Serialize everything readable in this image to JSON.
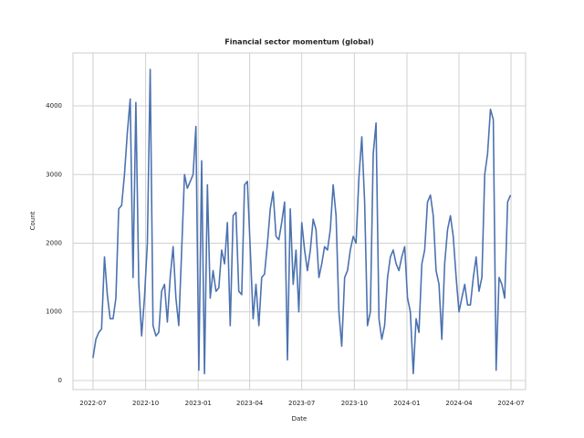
{
  "chart_data": {
    "type": "line",
    "title": "Financial sector momentum (global)",
    "xlabel": "Date",
    "ylabel": "Count",
    "series": [
      {
        "name": "Count",
        "color": "#4c72b0",
        "values": [
          330,
          600,
          700,
          750,
          1800,
          1250,
          900,
          900,
          1200,
          2500,
          2550,
          3000,
          3600,
          4100,
          1500,
          4050,
          1400,
          650,
          1200,
          2000,
          4530,
          800,
          650,
          700,
          1300,
          1400,
          850,
          1500,
          1950,
          1200,
          800,
          1900,
          3000,
          2800,
          2900,
          3000,
          3700,
          150,
          3200,
          100,
          2850,
          1200,
          1600,
          1300,
          1350,
          1900,
          1700,
          2300,
          800,
          2400,
          2450,
          1300,
          1250,
          2850,
          2900,
          1900,
          900,
          1400,
          800,
          1500,
          1550,
          2000,
          2500,
          2750,
          2100,
          2050,
          2300,
          2600,
          300,
          2500,
          1400,
          1900,
          1000,
          2300,
          1900,
          1600,
          1900,
          2350,
          2200,
          1500,
          1700,
          1950,
          1900,
          2200,
          2850,
          2400,
          1000,
          500,
          1500,
          1600,
          1900,
          2100,
          2000,
          2950,
          3550,
          2600,
          800,
          1000,
          3300,
          3750,
          900,
          600,
          800,
          1500,
          1800,
          1900,
          1700,
          1600,
          1800,
          1950,
          1200,
          1000,
          100,
          900,
          700,
          1700,
          1900,
          2600,
          2700,
          2400,
          1600,
          1400,
          600,
          1700,
          2200,
          2400,
          2100,
          1500,
          1000,
          1200,
          1400,
          1100,
          1100,
          1500,
          1800,
          1300,
          1500,
          3000,
          3300,
          3950,
          3800,
          150,
          1500,
          1400,
          1200,
          2600,
          2700
        ]
      }
    ],
    "xlim": [
      -7,
      151.3
    ],
    "xticks": [
      {
        "value": 0,
        "label": "2022-07"
      },
      {
        "value": 18.4,
        "label": "2022-10"
      },
      {
        "value": 36.8,
        "label": "2023-01"
      },
      {
        "value": 54.8,
        "label": "2023-04"
      },
      {
        "value": 73,
        "label": "2023-07"
      },
      {
        "value": 91.4,
        "label": "2023-10"
      },
      {
        "value": 109.8,
        "label": "2024-01"
      },
      {
        "value": 128,
        "label": "2024-04"
      },
      {
        "value": 146.2,
        "label": "2024-07"
      }
    ],
    "ylim": [
      -133,
      4771
    ],
    "yticks": [
      0,
      1000,
      2000,
      3000,
      4000
    ],
    "grid": true
  }
}
